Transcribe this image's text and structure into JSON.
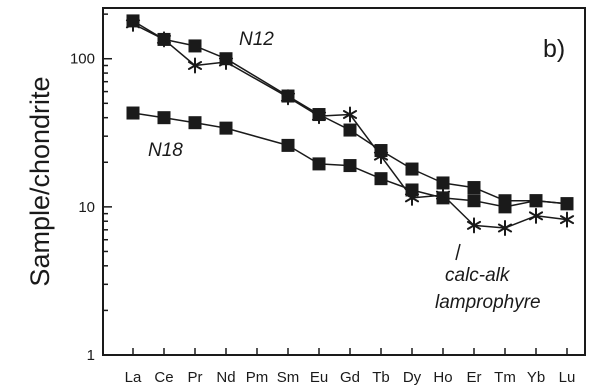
{
  "chart_data": {
    "type": "line",
    "ylabel": "Sample/chondrite",
    "panel_label": "b)",
    "y_scale": "log",
    "ylim": [
      1,
      220
    ],
    "y_ticks": [
      1,
      10,
      100
    ],
    "y_tick_labels": [
      "1",
      "10",
      "100"
    ],
    "categories": [
      "La",
      "Ce",
      "Pr",
      "Nd",
      "Pm",
      "Sm",
      "Eu",
      "Gd",
      "Tb",
      "Dy",
      "Ho",
      "Er",
      "Tm",
      "Yb",
      "Lu"
    ],
    "grid": false,
    "series": [
      {
        "name": "N12",
        "marker": "square",
        "values": [
          180,
          135,
          122,
          100,
          null,
          56,
          42,
          33,
          24,
          18,
          14.5,
          13.5,
          11,
          11,
          10.5
        ]
      },
      {
        "name": "N18",
        "marker": "square",
        "values": [
          43,
          40,
          37,
          34,
          null,
          26,
          19.5,
          19,
          15.5,
          13,
          11.5,
          11,
          10,
          11,
          10.5
        ]
      },
      {
        "name": "calc-alk lamprophyre",
        "marker": "star",
        "values": [
          172,
          135,
          90,
          95,
          null,
          55,
          41,
          42,
          22,
          11.5,
          12,
          7.5,
          7.2,
          8.7,
          8.2
        ]
      }
    ],
    "annotations": [
      {
        "text": "N12",
        "target": "N12"
      },
      {
        "text": "N18",
        "target": "N18"
      },
      {
        "text": "calc-alk",
        "target": "calc-alk lamprophyre"
      },
      {
        "text": "lamprophyre",
        "target": "calc-alk lamprophyre"
      }
    ],
    "colors": {
      "line": "#1a1a1a",
      "marker": "#1a1a1a"
    }
  }
}
